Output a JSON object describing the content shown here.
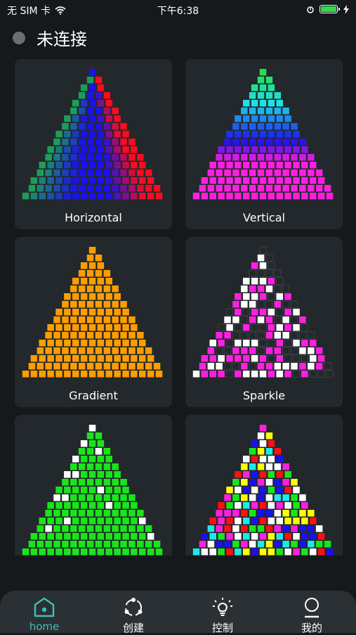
{
  "status": {
    "carrier": "无 SIM 卡",
    "time": "下午6:38"
  },
  "header": {
    "connection_status": "未连接"
  },
  "cards": [
    {
      "label": "Horizontal",
      "pattern": "horizontal"
    },
    {
      "label": "Vertical",
      "pattern": "vertical"
    },
    {
      "label": "Gradient",
      "pattern": "gradient"
    },
    {
      "label": "Sparkle",
      "pattern": "sparkle"
    },
    {
      "label": "",
      "pattern": "green"
    },
    {
      "label": "",
      "pattern": "multi"
    }
  ],
  "tabs": [
    {
      "label": "home",
      "icon": "home-icon",
      "active": true
    },
    {
      "label": "创建",
      "icon": "create-icon",
      "active": false
    },
    {
      "label": "控制",
      "icon": "bulb-icon",
      "active": false
    },
    {
      "label": "我的",
      "icon": "profile-icon",
      "active": false
    }
  ],
  "colors": {
    "accent": "#35c4b8",
    "background": "#15191c",
    "card": "#23282c",
    "tabbar": "#2b3034",
    "gradient": "#ff9d00",
    "sparkle": "#ff1fe0",
    "green": "#18e61a"
  }
}
